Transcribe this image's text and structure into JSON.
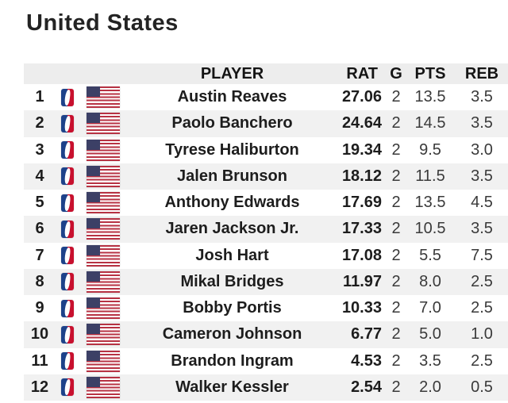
{
  "page": {
    "title": "United States"
  },
  "table": {
    "headers": {
      "player": "PLAYER",
      "rat": "RAT",
      "g": "G",
      "pts": "PTS",
      "reb": "REB"
    },
    "rows": [
      {
        "rank": "1",
        "player": "Austin Reaves",
        "rat": "27.06",
        "g": "2",
        "pts": "13.5",
        "reb": "3.5"
      },
      {
        "rank": "2",
        "player": "Paolo Banchero",
        "rat": "24.64",
        "g": "2",
        "pts": "14.5",
        "reb": "3.5"
      },
      {
        "rank": "3",
        "player": "Tyrese Haliburton",
        "rat": "19.34",
        "g": "2",
        "pts": "9.5",
        "reb": "3.0"
      },
      {
        "rank": "4",
        "player": "Jalen Brunson",
        "rat": "18.12",
        "g": "2",
        "pts": "11.5",
        "reb": "3.5"
      },
      {
        "rank": "5",
        "player": "Anthony Edwards",
        "rat": "17.69",
        "g": "2",
        "pts": "13.5",
        "reb": "4.5"
      },
      {
        "rank": "6",
        "player": "Jaren Jackson Jr.",
        "rat": "17.33",
        "g": "2",
        "pts": "10.5",
        "reb": "3.5"
      },
      {
        "rank": "7",
        "player": "Josh Hart",
        "rat": "17.08",
        "g": "2",
        "pts": "5.5",
        "reb": "7.5"
      },
      {
        "rank": "8",
        "player": "Mikal Bridges",
        "rat": "11.97",
        "g": "2",
        "pts": "8.0",
        "reb": "2.5"
      },
      {
        "rank": "9",
        "player": "Bobby Portis",
        "rat": "10.33",
        "g": "2",
        "pts": "7.0",
        "reb": "2.5"
      },
      {
        "rank": "10",
        "player": "Cameron Johnson",
        "rat": "6.77",
        "g": "2",
        "pts": "5.0",
        "reb": "1.0"
      },
      {
        "rank": "11",
        "player": "Brandon Ingram",
        "rat": "4.53",
        "g": "2",
        "pts": "3.5",
        "reb": "2.5"
      },
      {
        "rank": "12",
        "player": "Walker Kessler",
        "rat": "2.54",
        "g": "2",
        "pts": "2.0",
        "reb": "0.5"
      }
    ],
    "icons": {
      "team_logo": "nba-logo",
      "nationality_flag": "us-flag"
    },
    "colors": {
      "header_bg": "#ededed",
      "row_alt_bg": "#f1f1f1",
      "flag_red": "#b73243",
      "flag_canton_blue": "#3c4066",
      "nba_blue": "#1d428a",
      "nba_red": "#c8102e",
      "text_primary": "#1d1d1d",
      "text_secondary": "#3a3a3a"
    }
  }
}
